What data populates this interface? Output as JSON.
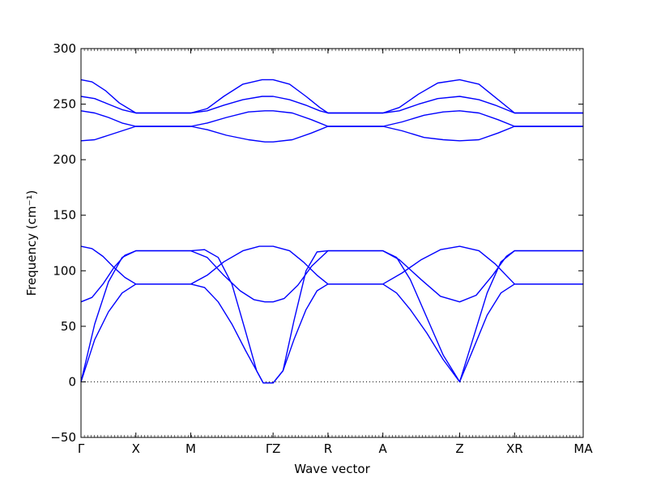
{
  "chart_data": {
    "type": "line",
    "title": "",
    "xlabel": "Wave vector",
    "ylabel": "Frequency (cm⁻¹)",
    "ylim": [
      -50,
      300
    ],
    "yticks": [
      -50,
      0,
      50,
      100,
      150,
      200,
      250,
      300
    ],
    "xlim": [
      0,
      9.15
    ],
    "high_symmetry_points": [
      {
        "label": "Γ",
        "x": 0
      },
      {
        "label": "X",
        "x": 1.0
      },
      {
        "label": "M",
        "x": 2.0
      },
      {
        "label": "ΓZ",
        "x": 3.5
      },
      {
        "label": "R",
        "x": 4.5
      },
      {
        "label": "A",
        "x": 5.5
      },
      {
        "label": "Z",
        "x": 6.9
      },
      {
        "label": "XR",
        "x": 7.9
      },
      {
        "label": "MA",
        "x": 9.15
      }
    ],
    "zero_line": {
      "y": 0,
      "style": "dotted"
    },
    "line_color": "#0000ff",
    "series": [
      {
        "values": [
          [
            0,
            0
          ],
          [
            0.25,
            52
          ],
          [
            0.5,
            90
          ],
          [
            0.75,
            112
          ],
          [
            1.0,
            118
          ],
          [
            2.0,
            118
          ],
          [
            2.25,
            119
          ],
          [
            2.5,
            112
          ],
          [
            2.75,
            88
          ],
          [
            3.0,
            45
          ],
          [
            3.2,
            10
          ],
          [
            3.32,
            -1
          ],
          [
            3.5,
            -1
          ],
          [
            3.68,
            10
          ],
          [
            3.88,
            55
          ],
          [
            4.1,
            100
          ],
          [
            4.3,
            117
          ],
          [
            4.5,
            118
          ],
          [
            5.5,
            118
          ],
          [
            5.75,
            112
          ],
          [
            6.0,
            92
          ],
          [
            6.3,
            58
          ],
          [
            6.6,
            24
          ],
          [
            6.9,
            0
          ],
          [
            7.15,
            40
          ],
          [
            7.4,
            80
          ],
          [
            7.65,
            108
          ],
          [
            7.9,
            118
          ],
          [
            9.15,
            118
          ]
        ]
      },
      {
        "values": [
          [
            0,
            0
          ],
          [
            0.25,
            38
          ],
          [
            0.5,
            63
          ],
          [
            0.75,
            80
          ],
          [
            1.0,
            88
          ],
          [
            2.0,
            88
          ],
          [
            2.25,
            85
          ],
          [
            2.5,
            72
          ],
          [
            2.75,
            52
          ],
          [
            3.0,
            28
          ],
          [
            3.2,
            10
          ],
          [
            3.32,
            -1
          ],
          [
            3.5,
            -1
          ],
          [
            3.68,
            10
          ],
          [
            3.88,
            38
          ],
          [
            4.1,
            65
          ],
          [
            4.3,
            82
          ],
          [
            4.5,
            88
          ],
          [
            5.5,
            88
          ],
          [
            5.75,
            80
          ],
          [
            6.0,
            65
          ],
          [
            6.3,
            44
          ],
          [
            6.6,
            20
          ],
          [
            6.9,
            0
          ],
          [
            7.15,
            30
          ],
          [
            7.4,
            60
          ],
          [
            7.65,
            80
          ],
          [
            7.9,
            88
          ],
          [
            9.15,
            88
          ]
        ]
      },
      {
        "values": [
          [
            0,
            72
          ],
          [
            0.2,
            76
          ],
          [
            0.4,
            88
          ],
          [
            0.6,
            103
          ],
          [
            0.8,
            114
          ],
          [
            1.0,
            118
          ],
          [
            2.0,
            118
          ],
          [
            2.3,
            112
          ],
          [
            2.6,
            96
          ],
          [
            2.9,
            82
          ],
          [
            3.15,
            74
          ],
          [
            3.35,
            72
          ],
          [
            3.5,
            72
          ],
          [
            3.7,
            75
          ],
          [
            3.95,
            87
          ],
          [
            4.2,
            104
          ],
          [
            4.5,
            118
          ],
          [
            5.5,
            118
          ],
          [
            5.8,
            110
          ],
          [
            6.2,
            92
          ],
          [
            6.55,
            77
          ],
          [
            6.9,
            72
          ],
          [
            7.2,
            78
          ],
          [
            7.5,
            96
          ],
          [
            7.75,
            113
          ],
          [
            7.9,
            118
          ],
          [
            9.15,
            118
          ]
        ]
      },
      {
        "values": [
          [
            0,
            122
          ],
          [
            0.2,
            120
          ],
          [
            0.4,
            113
          ],
          [
            0.6,
            103
          ],
          [
            0.8,
            94
          ],
          [
            1.0,
            88
          ],
          [
            2.0,
            88
          ],
          [
            2.3,
            96
          ],
          [
            2.6,
            108
          ],
          [
            2.95,
            118
          ],
          [
            3.25,
            122
          ],
          [
            3.5,
            122
          ],
          [
            3.8,
            118
          ],
          [
            4.05,
            108
          ],
          [
            4.3,
            96
          ],
          [
            4.5,
            88
          ],
          [
            5.5,
            88
          ],
          [
            5.85,
            98
          ],
          [
            6.2,
            110
          ],
          [
            6.55,
            119
          ],
          [
            6.9,
            122
          ],
          [
            7.25,
            118
          ],
          [
            7.55,
            106
          ],
          [
            7.9,
            88
          ],
          [
            9.15,
            88
          ]
        ]
      },
      {
        "values": [
          [
            0,
            272
          ],
          [
            0.2,
            270
          ],
          [
            0.45,
            262
          ],
          [
            0.7,
            251
          ],
          [
            1.0,
            242
          ],
          [
            2.0,
            242
          ],
          [
            2.3,
            246
          ],
          [
            2.6,
            257
          ],
          [
            2.95,
            268
          ],
          [
            3.3,
            272
          ],
          [
            3.5,
            272
          ],
          [
            3.8,
            268
          ],
          [
            4.1,
            257
          ],
          [
            4.35,
            247
          ],
          [
            4.5,
            242
          ],
          [
            5.5,
            242
          ],
          [
            5.8,
            247
          ],
          [
            6.15,
            259
          ],
          [
            6.5,
            269
          ],
          [
            6.9,
            272
          ],
          [
            7.25,
            268
          ],
          [
            7.55,
            256
          ],
          [
            7.9,
            242
          ],
          [
            9.15,
            242
          ]
        ]
      },
      {
        "values": [
          [
            0,
            257
          ],
          [
            0.25,
            255
          ],
          [
            0.5,
            250
          ],
          [
            0.75,
            245
          ],
          [
            1.0,
            242
          ],
          [
            2.0,
            242
          ],
          [
            2.3,
            244
          ],
          [
            2.6,
            249
          ],
          [
            2.95,
            254
          ],
          [
            3.3,
            257
          ],
          [
            3.5,
            257
          ],
          [
            3.8,
            254
          ],
          [
            4.1,
            249
          ],
          [
            4.35,
            244
          ],
          [
            4.5,
            242
          ],
          [
            5.5,
            242
          ],
          [
            5.8,
            244
          ],
          [
            6.15,
            250
          ],
          [
            6.5,
            255
          ],
          [
            6.9,
            257
          ],
          [
            7.25,
            254
          ],
          [
            7.55,
            249
          ],
          [
            7.9,
            242
          ],
          [
            9.15,
            242
          ]
        ]
      },
      {
        "values": [
          [
            0,
            244
          ],
          [
            0.25,
            242
          ],
          [
            0.5,
            238
          ],
          [
            0.75,
            233
          ],
          [
            1.0,
            230
          ],
          [
            2.0,
            230
          ],
          [
            2.3,
            233
          ],
          [
            2.65,
            238
          ],
          [
            3.05,
            243
          ],
          [
            3.35,
            244
          ],
          [
            3.5,
            244
          ],
          [
            3.85,
            242
          ],
          [
            4.2,
            236
          ],
          [
            4.5,
            230
          ],
          [
            5.5,
            230
          ],
          [
            5.85,
            234
          ],
          [
            6.25,
            240
          ],
          [
            6.6,
            243
          ],
          [
            6.9,
            244
          ],
          [
            7.25,
            242
          ],
          [
            7.6,
            236
          ],
          [
            7.9,
            230
          ],
          [
            9.15,
            230
          ]
        ]
      },
      {
        "values": [
          [
            0,
            217
          ],
          [
            0.25,
            218
          ],
          [
            0.5,
            222
          ],
          [
            0.75,
            226
          ],
          [
            1.0,
            230
          ],
          [
            2.0,
            230
          ],
          [
            2.3,
            227
          ],
          [
            2.65,
            222
          ],
          [
            3.05,
            218
          ],
          [
            3.35,
            216
          ],
          [
            3.5,
            216
          ],
          [
            3.85,
            218
          ],
          [
            4.2,
            224
          ],
          [
            4.5,
            230
          ],
          [
            5.5,
            230
          ],
          [
            5.85,
            226
          ],
          [
            6.25,
            220
          ],
          [
            6.6,
            218
          ],
          [
            6.9,
            217
          ],
          [
            7.25,
            218
          ],
          [
            7.6,
            224
          ],
          [
            7.9,
            230
          ],
          [
            9.15,
            230
          ]
        ]
      }
    ]
  }
}
